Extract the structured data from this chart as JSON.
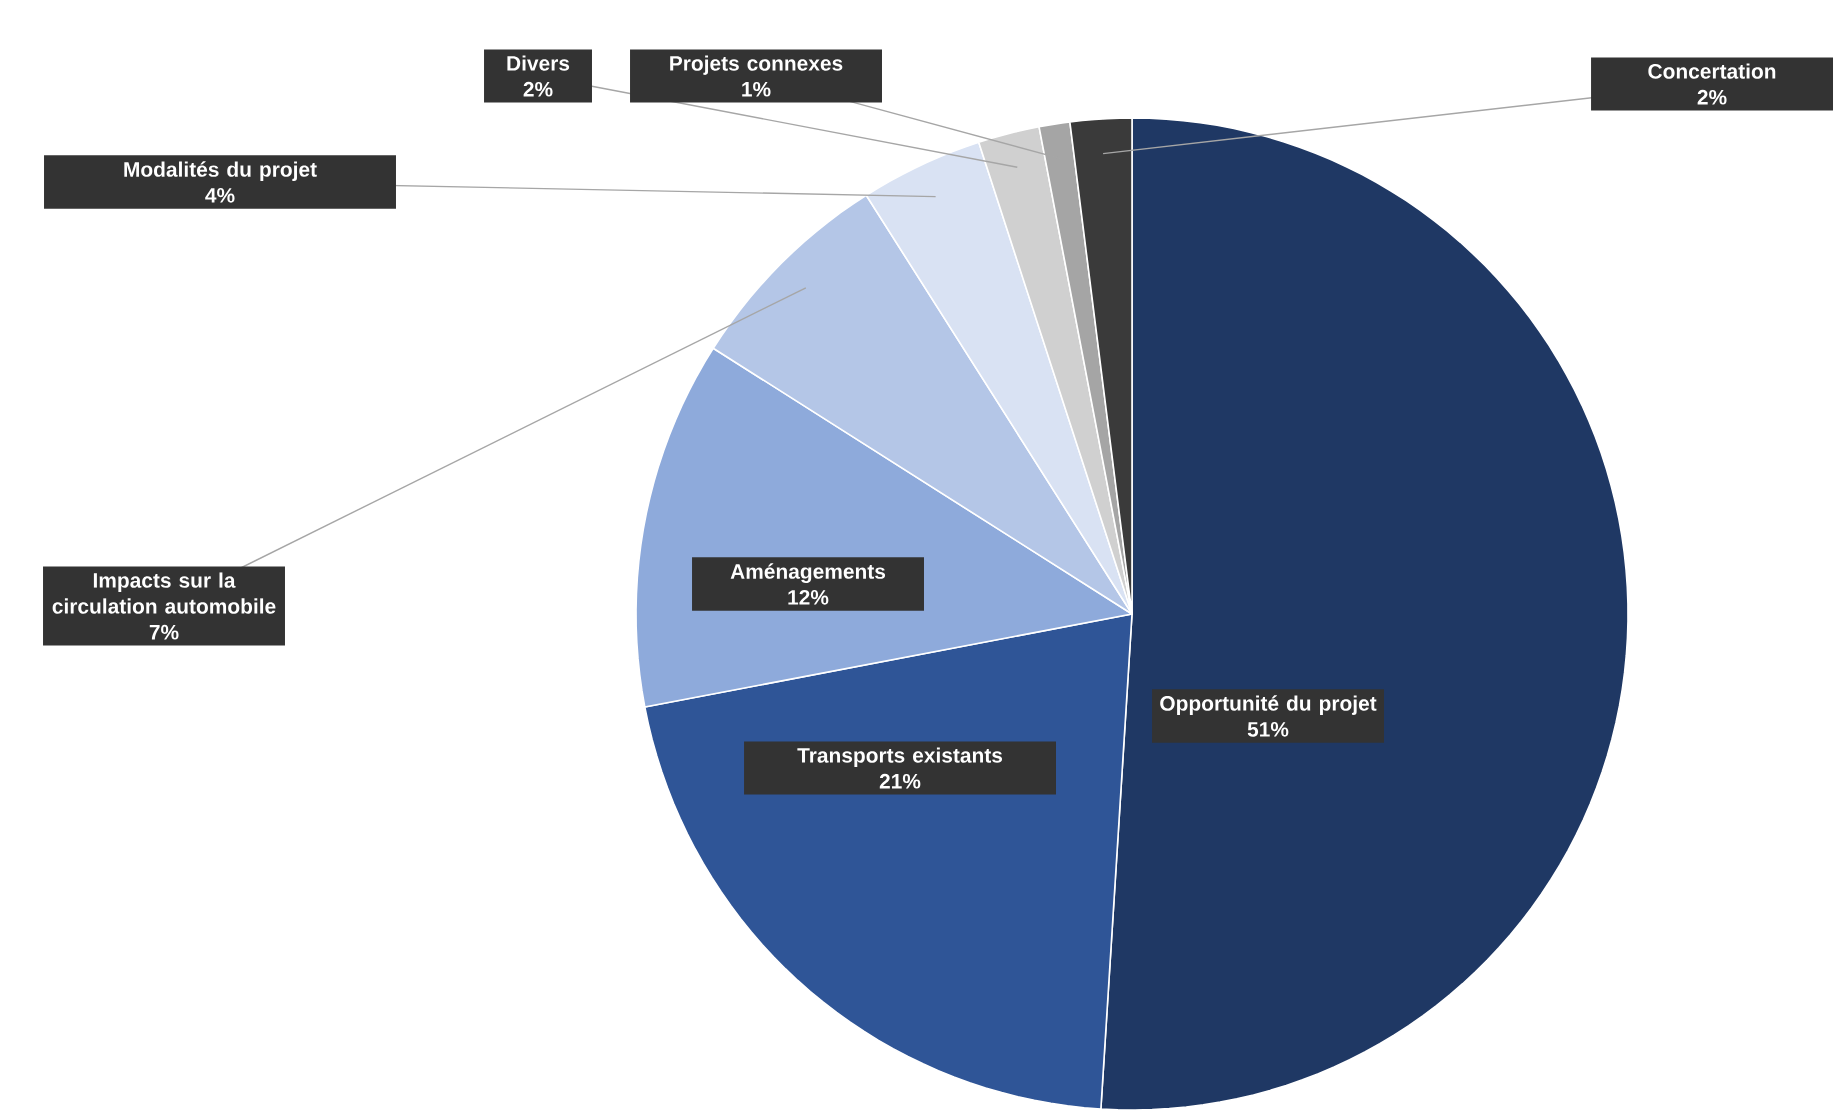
{
  "chart_data": {
    "type": "pie",
    "categories": [
      "Opportunité du projet",
      "Transports existants",
      "Aménagements",
      "Impacts sur la circulation automobile",
      "Modalités du projet",
      "Divers",
      "Projets connexes",
      "Concertation"
    ],
    "values": [
      51,
      21,
      12,
      7,
      4,
      2,
      1,
      2
    ],
    "value_labels": [
      "51%",
      "21%",
      "12%",
      "7%",
      "4%",
      "2%",
      "1%",
      "2%"
    ],
    "colors": [
      "#1f3864",
      "#2f5597",
      "#8eaadb",
      "#b4c6e7",
      "#d9e2f3",
      "#d0d0d0",
      "#a5a5a5",
      "#3a3a3a"
    ]
  }
}
